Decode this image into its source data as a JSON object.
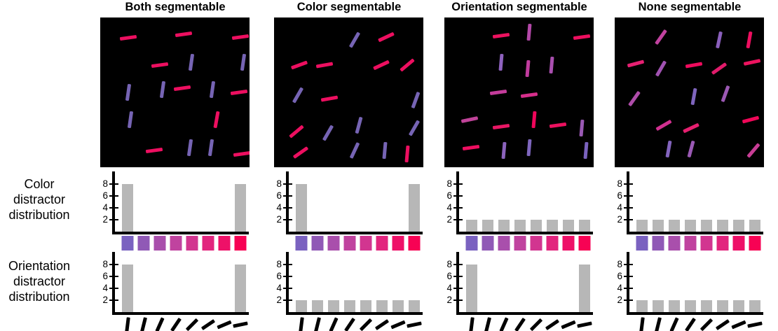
{
  "figure": {
    "row_labels": {
      "color": [
        "Color",
        "distractor",
        "distribution"
      ],
      "orientation": [
        "Orientation",
        "distractor",
        "distribution"
      ]
    },
    "y_ticks": [
      2,
      4,
      6,
      8
    ],
    "swatch_colors": [
      "#7A62C0",
      "#9059B6",
      "#A94FAC",
      "#C0439F",
      "#D23590",
      "#E2257E",
      "#EE1168",
      "#F70254"
    ],
    "orientation_icon_angles": [
      -83,
      -76,
      -66,
      -56,
      -45,
      -34,
      -23,
      -12
    ],
    "colors": {
      "stimulus_pink": "#ED0F60",
      "stimulus_purple": "#7664B4",
      "bar_gray": "#B7B7B7",
      "panel_bg": "#000000",
      "axis_black": "#000000"
    },
    "columns": [
      {
        "title": "Both segmentable",
        "color_distribution": [
          8,
          0,
          0,
          0,
          0,
          0,
          0,
          8
        ],
        "orientation_distribution": [
          8,
          0,
          0,
          0,
          0,
          0,
          0,
          8
        ],
        "stimulus_bars": [
          [
            19,
            13.5,
            -8,
            "#ED0F60"
          ],
          [
            56,
            11,
            -8,
            "#ED0F60"
          ],
          [
            94,
            13,
            -8,
            "#ED0F60"
          ],
          [
            40,
            32,
            -8,
            "#ED0F60"
          ],
          [
            61,
            30,
            -82,
            "#7664B4"
          ],
          [
            96,
            30,
            -82,
            "#7664B4"
          ],
          [
            19,
            50,
            -82,
            "#7664B4"
          ],
          [
            42,
            48,
            -82,
            "#7664B4"
          ],
          [
            55,
            47,
            -8,
            "#ED0F60"
          ],
          [
            75,
            48,
            -82,
            "#7664B4"
          ],
          [
            93,
            50,
            -8,
            "#ED0F60"
          ],
          [
            20,
            68,
            -82,
            "#7664B4"
          ],
          [
            78,
            68,
            -80,
            "#ED0F60"
          ],
          [
            36,
            89,
            -8,
            "#ED0F60"
          ],
          [
            60,
            87,
            -82,
            "#7664B4"
          ],
          [
            74,
            87,
            -82,
            "#7664B4"
          ],
          [
            95,
            91,
            -8,
            "#ED0F60"
          ]
        ]
      },
      {
        "title": "Color segmentable",
        "color_distribution": [
          8,
          0,
          0,
          0,
          0,
          0,
          0,
          8
        ],
        "orientation_distribution": [
          2,
          2,
          2,
          2,
          2,
          2,
          2,
          2
        ],
        "stimulus_bars": [
          [
            54,
            15,
            -60,
            "#7664B4"
          ],
          [
            75,
            13,
            -25,
            "#ED0F60"
          ],
          [
            17,
            32,
            -20,
            "#ED0F60"
          ],
          [
            34,
            32,
            -10,
            "#ED0F60"
          ],
          [
            72,
            32,
            -25,
            "#ED0F60"
          ],
          [
            89,
            32,
            -40,
            "#ED0F60"
          ],
          [
            16,
            52,
            -60,
            "#7664B4"
          ],
          [
            37,
            54,
            -10,
            "#ED0F60"
          ],
          [
            95,
            55,
            -70,
            "#7664B4"
          ],
          [
            15,
            76,
            -40,
            "#ED0F60"
          ],
          [
            36,
            77,
            -60,
            "#7664B4"
          ],
          [
            57,
            72,
            -75,
            "#7664B4"
          ],
          [
            94,
            74,
            -60,
            "#7664B4"
          ],
          [
            18,
            90,
            -35,
            "#ED0F60"
          ],
          [
            54,
            89,
            -65,
            "#7664B4"
          ],
          [
            74,
            89,
            -85,
            "#7664B4"
          ],
          [
            89,
            91,
            -85,
            "#ED0F60"
          ]
        ]
      },
      {
        "title": "Orientation segmentable",
        "color_distribution": [
          2,
          2,
          2,
          2,
          2,
          2,
          2,
          2
        ],
        "orientation_distribution": [
          8,
          0,
          0,
          0,
          0,
          0,
          0,
          8
        ],
        "stimulus_bars": [
          [
            38,
            12,
            -8,
            "#EC125F"
          ],
          [
            57,
            10,
            -85,
            "#B348A8"
          ],
          [
            92,
            13,
            -8,
            "#ED0F5F"
          ],
          [
            38,
            30,
            -85,
            "#8E62BE"
          ],
          [
            56,
            34,
            -85,
            "#C13C9E"
          ],
          [
            72,
            32,
            -85,
            "#A94FAF"
          ],
          [
            36,
            50,
            -8,
            "#C43C9B"
          ],
          [
            57,
            52,
            -8,
            "#D62E8B"
          ],
          [
            17,
            68,
            -12,
            "#C04399"
          ],
          [
            60,
            68,
            -85,
            "#F0055A"
          ],
          [
            38,
            73,
            -8,
            "#E91765"
          ],
          [
            76,
            72,
            -8,
            "#EC115F"
          ],
          [
            92,
            74,
            -85,
            "#9A59B4"
          ],
          [
            18,
            87,
            -8,
            "#EE0E60"
          ],
          [
            40,
            89,
            -85,
            "#8B63BC"
          ],
          [
            57,
            87,
            -85,
            "#7E66BE"
          ],
          [
            95,
            89,
            -85,
            "#7A62BD"
          ]
        ]
      },
      {
        "title": "None segmentable",
        "color_distribution": [
          2,
          2,
          2,
          2,
          2,
          2,
          2,
          2
        ],
        "orientation_distribution": [
          2,
          2,
          2,
          2,
          2,
          2,
          2,
          2
        ],
        "stimulus_bars": [
          [
            31,
            13,
            -55,
            "#C1429F"
          ],
          [
            70,
            15,
            -78,
            "#8A5FBC"
          ],
          [
            90,
            15,
            -80,
            "#EE0E5F"
          ],
          [
            14,
            31,
            -15,
            "#E62072"
          ],
          [
            31,
            34,
            -60,
            "#A052B1"
          ],
          [
            53,
            32,
            -10,
            "#EF0B5D"
          ],
          [
            70,
            34,
            -35,
            "#E11B6B"
          ],
          [
            92,
            30,
            -12,
            "#ED135F"
          ],
          [
            13,
            54,
            -55,
            "#AE4CA9"
          ],
          [
            53,
            53,
            -80,
            "#7F65BD"
          ],
          [
            74,
            51,
            -70,
            "#9B58B3"
          ],
          [
            33,
            72,
            -30,
            "#D13090"
          ],
          [
            51,
            74,
            -25,
            "#E51F6F"
          ],
          [
            91,
            68,
            -15,
            "#F00758"
          ],
          [
            36,
            88,
            -80,
            "#8364BE"
          ],
          [
            51,
            88,
            -75,
            "#9A59B4"
          ],
          [
            93,
            89,
            -50,
            "#C83D95"
          ]
        ]
      }
    ]
  },
  "chart_data": [
    {
      "type": "bar",
      "row": "Color distractor distribution",
      "column": "Both segmentable",
      "categories": [
        "#7A62C0",
        "#9059B6",
        "#A94FAC",
        "#C0439F",
        "#D23590",
        "#E2257E",
        "#EE1168",
        "#F70254"
      ],
      "values": [
        8,
        0,
        0,
        0,
        0,
        0,
        0,
        8
      ],
      "ylabel": "",
      "y_ticks": [
        2,
        4,
        6,
        8
      ],
      "ylim": [
        0,
        10
      ],
      "bar_color": "#B7B7B7",
      "x_axis_kind": "color gradient purple to red",
      "grid": false,
      "legend": false
    },
    {
      "type": "bar",
      "row": "Color distractor distribution",
      "column": "Color segmentable",
      "categories": [
        "#7A62C0",
        "#9059B6",
        "#A94FAC",
        "#C0439F",
        "#D23590",
        "#E2257E",
        "#EE1168",
        "#F70254"
      ],
      "values": [
        8,
        0,
        0,
        0,
        0,
        0,
        0,
        8
      ],
      "y_ticks": [
        2,
        4,
        6,
        8
      ],
      "ylim": [
        0,
        10
      ],
      "bar_color": "#B7B7B7",
      "x_axis_kind": "color gradient purple to red",
      "grid": false,
      "legend": false
    },
    {
      "type": "bar",
      "row": "Color distractor distribution",
      "column": "Orientation segmentable",
      "categories": [
        "#7A62C0",
        "#9059B6",
        "#A94FAC",
        "#C0439F",
        "#D23590",
        "#E2257E",
        "#EE1168",
        "#F70254"
      ],
      "values": [
        2,
        2,
        2,
        2,
        2,
        2,
        2,
        2
      ],
      "y_ticks": [
        2,
        4,
        6,
        8
      ],
      "ylim": [
        0,
        10
      ],
      "bar_color": "#B7B7B7",
      "x_axis_kind": "color gradient purple to red",
      "grid": false,
      "legend": false
    },
    {
      "type": "bar",
      "row": "Color distractor distribution",
      "column": "None segmentable",
      "categories": [
        "#7A62C0",
        "#9059B6",
        "#A94FAC",
        "#C0439F",
        "#D23590",
        "#E2257E",
        "#EE1168",
        "#F70254"
      ],
      "values": [
        2,
        2,
        2,
        2,
        2,
        2,
        2,
        2
      ],
      "y_ticks": [
        2,
        4,
        6,
        8
      ],
      "ylim": [
        0,
        10
      ],
      "bar_color": "#B7B7B7",
      "x_axis_kind": "color gradient purple to red",
      "grid": false,
      "legend": false
    },
    {
      "type": "bar",
      "row": "Orientation distractor distribution",
      "column": "Both segmentable",
      "categories": [
        83,
        76,
        66,
        56,
        45,
        34,
        23,
        12
      ],
      "values": [
        8,
        0,
        0,
        0,
        0,
        0,
        0,
        8
      ],
      "y_ticks": [
        2,
        4,
        6,
        8
      ],
      "ylim": [
        0,
        10
      ],
      "bar_color": "#B7B7B7",
      "x_axis_kind": "bar tilt degrees from horizontal, vertical to horizontal",
      "grid": false,
      "legend": false
    },
    {
      "type": "bar",
      "row": "Orientation distractor distribution",
      "column": "Color segmentable",
      "categories": [
        83,
        76,
        66,
        56,
        45,
        34,
        23,
        12
      ],
      "values": [
        2,
        2,
        2,
        2,
        2,
        2,
        2,
        2
      ],
      "y_ticks": [
        2,
        4,
        6,
        8
      ],
      "ylim": [
        0,
        10
      ],
      "bar_color": "#B7B7B7",
      "x_axis_kind": "bar tilt degrees from horizontal, vertical to horizontal",
      "grid": false,
      "legend": false
    },
    {
      "type": "bar",
      "row": "Orientation distractor distribution",
      "column": "Orientation segmentable",
      "categories": [
        83,
        76,
        66,
        56,
        45,
        34,
        23,
        12
      ],
      "values": [
        8,
        0,
        0,
        0,
        0,
        0,
        0,
        8
      ],
      "y_ticks": [
        2,
        4,
        6,
        8
      ],
      "ylim": [
        0,
        10
      ],
      "bar_color": "#B7B7B7",
      "x_axis_kind": "bar tilt degrees from horizontal, vertical to horizontal",
      "grid": false,
      "legend": false
    },
    {
      "type": "bar",
      "row": "Orientation distractor distribution",
      "column": "None segmentable",
      "categories": [
        83,
        76,
        66,
        56,
        45,
        34,
        23,
        12
      ],
      "values": [
        2,
        2,
        2,
        2,
        2,
        2,
        2,
        2
      ],
      "y_ticks": [
        2,
        4,
        6,
        8
      ],
      "ylim": [
        0,
        10
      ],
      "bar_color": "#B7B7B7",
      "x_axis_kind": "bar tilt degrees from horizontal, vertical to horizontal",
      "grid": false,
      "legend": false
    }
  ]
}
